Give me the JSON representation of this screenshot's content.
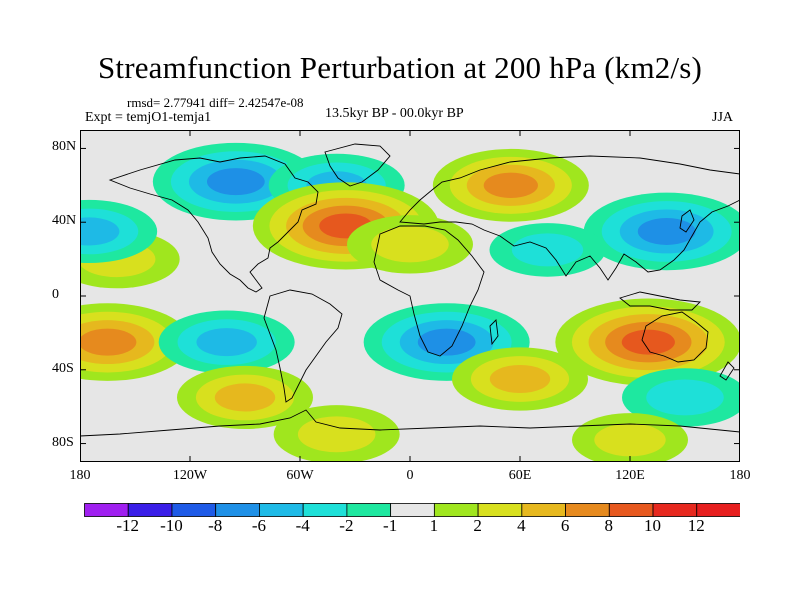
{
  "title": "Streamfunction Perturbation at 200 hPa (km2/s)",
  "stats": "rmsd= 2.77941 diff= 2.42547e-08",
  "experiment": "Expt = temjO1-temja1",
  "period": "13.5kyr BP - 00.0kyr BP",
  "season": "JJA",
  "map": {
    "projection": "cylindrical-equidistant",
    "lon_range": [
      -180,
      180
    ],
    "lat_range": [
      -90,
      90
    ],
    "x_ticks": [
      {
        "lon": -180,
        "label": "180"
      },
      {
        "lon": -120,
        "label": "120W"
      },
      {
        "lon": -60,
        "label": "60W"
      },
      {
        "lon": 0,
        "label": "0"
      },
      {
        "lon": 60,
        "label": "60E"
      },
      {
        "lon": 120,
        "label": "120E"
      },
      {
        "lon": 180,
        "label": "180"
      }
    ],
    "y_ticks": [
      {
        "lat": 80,
        "label": "80N"
      },
      {
        "lat": 40,
        "label": "40N"
      },
      {
        "lat": 0,
        "label": "0"
      },
      {
        "lat": -40,
        "label": "40S"
      },
      {
        "lat": -80,
        "label": "80S"
      }
    ],
    "background_color": "#e6e6e6"
  },
  "colorbar": {
    "labels": [
      "-12",
      "-10",
      "-8",
      "-6",
      "-4",
      "-2",
      "-1",
      "1",
      "2",
      "4",
      "6",
      "8",
      "10",
      "12"
    ],
    "colors": [
      "#a020f0",
      "#3a1ee8",
      "#1e5ae6",
      "#1e90e6",
      "#1ebae6",
      "#1ee0d8",
      "#1ee8a0",
      "#e6e6e6",
      "#a0e61e",
      "#d8e01e",
      "#e6b81e",
      "#e68a1e",
      "#e6581e",
      "#e6281e",
      "#e61e1e"
    ]
  },
  "chart_data": {
    "type": "heatmap",
    "variable": "Streamfunction Perturbation at 200 hPa",
    "units": "km2/s",
    "levels": [
      -12,
      -10,
      -8,
      -6,
      -4,
      -2,
      -1,
      1,
      2,
      4,
      6,
      8,
      10,
      12
    ],
    "anomaly_centers": [
      {
        "lon": -95,
        "lat": 62,
        "value": -7
      },
      {
        "lon": -40,
        "lat": 60,
        "value": -4
      },
      {
        "lon": -35,
        "lat": 38,
        "value": 9
      },
      {
        "lon": 0,
        "lat": 28,
        "value": 3
      },
      {
        "lon": 55,
        "lat": 60,
        "value": 6
      },
      {
        "lon": 140,
        "lat": 35,
        "value": -7
      },
      {
        "lon": 75,
        "lat": 25,
        "value": -2
      },
      {
        "lon": -160,
        "lat": 20,
        "value": 3
      },
      {
        "lon": -175,
        "lat": 35,
        "value": -4
      },
      {
        "lon": -165,
        "lat": -25,
        "value": 7
      },
      {
        "lon": -100,
        "lat": -25,
        "value": -4
      },
      {
        "lon": 20,
        "lat": -25,
        "value": -7
      },
      {
        "lon": 130,
        "lat": -25,
        "value": 9
      },
      {
        "lon": 60,
        "lat": -45,
        "value": 4
      },
      {
        "lon": 150,
        "lat": -55,
        "value": -3
      },
      {
        "lon": -90,
        "lat": -55,
        "value": 4
      },
      {
        "lon": 120,
        "lat": -78,
        "value": 2
      },
      {
        "lon": -40,
        "lat": -75,
        "value": 3
      }
    ]
  }
}
